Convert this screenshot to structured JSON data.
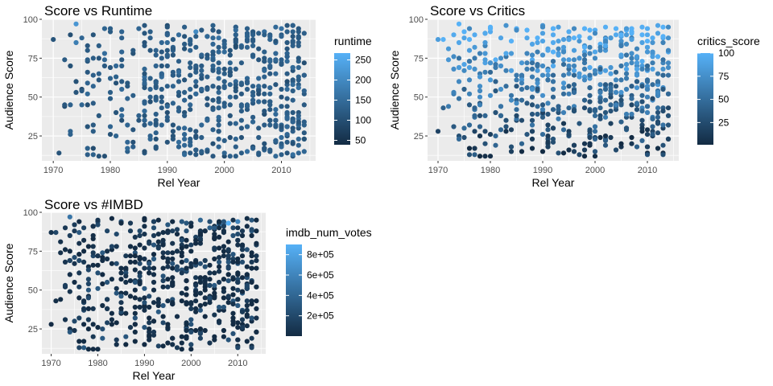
{
  "palette": {
    "low": "#132B43",
    "high": "#56B1F7",
    "panel": "#EBEBEB",
    "grid": "#FFFFFF"
  },
  "chart_data": [
    {
      "type": "scatter",
      "title": "Score vs Runtime",
      "xlabel": "Rel Year",
      "ylabel": "Audience Score",
      "xlim": [
        1968,
        2016
      ],
      "ylim": [
        9,
        100
      ],
      "xticks": [
        1970,
        1980,
        1990,
        2000,
        2010
      ],
      "yticks": [
        25,
        50,
        75,
        100
      ],
      "grid": true,
      "legend": {
        "title": "runtime",
        "position": "right",
        "range": [
          39,
          267
        ],
        "ticks": [
          {
            "value": 50,
            "label": "50"
          },
          {
            "value": 100,
            "label": "100"
          },
          {
            "value": 150,
            "label": "150"
          },
          {
            "value": 200,
            "label": "200"
          },
          {
            "value": 250,
            "label": "250"
          }
        ]
      },
      "seed": 11,
      "points": [
        [
          1970,
          87,
          110
        ],
        [
          1972,
          44,
          95
        ],
        [
          1972,
          74,
          120
        ],
        [
          1973,
          90,
          100
        ],
        [
          1974,
          97,
          220
        ],
        [
          1974,
          85,
          180
        ],
        [
          1974,
          60,
          105
        ],
        [
          1975,
          88,
          140
        ],
        [
          1975,
          55,
          95
        ],
        [
          1976,
          80,
          120
        ],
        [
          1976,
          45,
          100
        ],
        [
          1977,
          17,
          95
        ],
        [
          1977,
          90,
          110
        ],
        [
          1978,
          65,
          130
        ],
        [
          1978,
          38,
          115
        ],
        [
          1979,
          12,
          100
        ],
        [
          1979,
          78,
          150
        ],
        [
          1980,
          92,
          120
        ],
        [
          1980,
          26,
          105
        ],
        [
          1981,
          40,
          110
        ],
        [
          1982,
          88,
          130
        ],
        [
          1982,
          70,
          125
        ],
        [
          1983,
          57,
          115
        ],
        [
          1984,
          78,
          105
        ],
        [
          1985,
          94,
          140
        ],
        [
          1985,
          35,
          110
        ],
        [
          1986,
          63,
          160
        ],
        [
          1987,
          88,
          130
        ],
        [
          1988,
          50,
          120
        ],
        [
          1988,
          23,
          105
        ],
        [
          1989,
          85,
          140
        ],
        [
          1990,
          45,
          95
        ],
        [
          1990,
          70,
          120
        ],
        [
          1991,
          32,
          110
        ],
        [
          1992,
          90,
          150
        ],
        [
          1992,
          60,
          125
        ],
        [
          1993,
          40,
          105
        ],
        [
          1994,
          80,
          135
        ],
        [
          1995,
          92,
          200
        ],
        [
          1995,
          28,
          110
        ],
        [
          1996,
          55,
          120
        ],
        [
          1997,
          75,
          140
        ],
        [
          1998,
          20,
          100
        ],
        [
          1998,
          48,
          115
        ],
        [
          1999,
          88,
          160
        ],
        [
          2000,
          12,
          95
        ],
        [
          2000,
          65,
          125
        ],
        [
          2001,
          38,
          110
        ],
        [
          2002,
          85,
          140
        ],
        [
          2002,
          95,
          150
        ],
        [
          2003,
          24,
          105
        ],
        [
          2003,
          58,
          130
        ],
        [
          2004,
          90,
          180
        ],
        [
          2004,
          42,
          115
        ],
        [
          2005,
          18,
          100
        ],
        [
          2005,
          76,
          135
        ],
        [
          2006,
          62,
          145
        ],
        [
          2006,
          30,
          120
        ],
        [
          2007,
          92,
          150
        ],
        [
          2007,
          20,
          105
        ],
        [
          2008,
          70,
          130
        ],
        [
          2008,
          45,
          125
        ],
        [
          2009,
          85,
          140
        ],
        [
          2009,
          35,
          110
        ],
        [
          2010,
          94,
          160
        ],
        [
          2010,
          55,
          120
        ],
        [
          2011,
          25,
          105
        ],
        [
          2011,
          78,
          135
        ],
        [
          2012,
          60,
          125
        ],
        [
          2012,
          40,
          115
        ],
        [
          2013,
          88,
          140
        ],
        [
          2013,
          30,
          110
        ],
        [
          2014,
          52,
          120
        ],
        [
          2014,
          72,
          100
        ]
      ]
    },
    {
      "type": "scatter",
      "title": "Score vs Critics",
      "xlabel": "Rel Year",
      "ylabel": "Audience Score",
      "xlim": [
        1968,
        2016
      ],
      "ylim": [
        9,
        100
      ],
      "xticks": [
        1970,
        1980,
        1990,
        2000,
        2010
      ],
      "yticks": [
        25,
        50,
        75,
        100
      ],
      "grid": true,
      "legend": {
        "title": "critics_score",
        "position": "right",
        "range": [
          1,
          100
        ],
        "ticks": [
          {
            "value": 25,
            "label": "25"
          },
          {
            "value": 50,
            "label": "50"
          },
          {
            "value": 75,
            "label": "75"
          },
          {
            "value": 100,
            "label": "100"
          }
        ]
      },
      "seed": 11,
      "points": [
        [
          1970,
          87,
          85
        ],
        [
          1972,
          44,
          60
        ],
        [
          1972,
          74,
          80
        ],
        [
          1973,
          90,
          95
        ],
        [
          1974,
          97,
          100
        ],
        [
          1974,
          85,
          92
        ],
        [
          1974,
          60,
          70
        ],
        [
          1975,
          88,
          90
        ],
        [
          1975,
          55,
          40
        ],
        [
          1976,
          80,
          85
        ],
        [
          1976,
          45,
          35
        ],
        [
          1977,
          17,
          10
        ],
        [
          1977,
          90,
          95
        ],
        [
          1978,
          65,
          60
        ],
        [
          1978,
          38,
          25
        ],
        [
          1979,
          12,
          5
        ],
        [
          1979,
          78,
          80
        ],
        [
          1980,
          92,
          95
        ],
        [
          1980,
          26,
          15
        ],
        [
          1981,
          40,
          30
        ],
        [
          1982,
          88,
          90
        ],
        [
          1982,
          70,
          75
        ],
        [
          1983,
          57,
          50
        ],
        [
          1984,
          78,
          82
        ],
        [
          1985,
          94,
          98
        ],
        [
          1985,
          35,
          20
        ],
        [
          1986,
          63,
          65
        ],
        [
          1987,
          88,
          92
        ],
        [
          1988,
          50,
          45
        ],
        [
          1988,
          23,
          12
        ],
        [
          1989,
          85,
          90
        ],
        [
          1990,
          45,
          35
        ],
        [
          1990,
          70,
          72
        ],
        [
          1991,
          32,
          20
        ],
        [
          1992,
          90,
          95
        ],
        [
          1992,
          60,
          55
        ],
        [
          1993,
          40,
          30
        ],
        [
          1994,
          80,
          85
        ],
        [
          1995,
          92,
          96
        ],
        [
          1995,
          28,
          15
        ],
        [
          1996,
          55,
          50
        ],
        [
          1997,
          75,
          78
        ],
        [
          1998,
          20,
          8
        ],
        [
          1998,
          48,
          40
        ],
        [
          1999,
          88,
          90
        ],
        [
          2000,
          12,
          3
        ],
        [
          2000,
          65,
          62
        ],
        [
          2001,
          38,
          25
        ],
        [
          2002,
          85,
          88
        ],
        [
          2002,
          95,
          98
        ],
        [
          2003,
          24,
          12
        ],
        [
          2003,
          58,
          55
        ],
        [
          2004,
          90,
          94
        ],
        [
          2004,
          42,
          30
        ],
        [
          2005,
          18,
          8
        ],
        [
          2005,
          76,
          78
        ],
        [
          2006,
          62,
          60
        ],
        [
          2006,
          30,
          20
        ],
        [
          2007,
          92,
          96
        ],
        [
          2007,
          20,
          10
        ],
        [
          2008,
          70,
          72
        ],
        [
          2008,
          45,
          38
        ],
        [
          2009,
          85,
          88
        ],
        [
          2009,
          35,
          25
        ],
        [
          2010,
          94,
          97
        ],
        [
          2010,
          55,
          50
        ],
        [
          2011,
          25,
          15
        ],
        [
          2011,
          78,
          80
        ],
        [
          2012,
          60,
          55
        ],
        [
          2012,
          40,
          30
        ],
        [
          2013,
          88,
          92
        ],
        [
          2013,
          30,
          18
        ],
        [
          2014,
          52,
          45
        ],
        [
          2014,
          72,
          70
        ]
      ]
    },
    {
      "type": "scatter",
      "title": "Score vs #IMBD",
      "xlabel": "Rel Year",
      "ylabel": "Audience Score",
      "xlim": [
        1968,
        2016
      ],
      "ylim": [
        9,
        100
      ],
      "xticks": [
        1970,
        1980,
        1990,
        2000,
        2010
      ],
      "yticks": [
        25,
        50,
        75,
        100
      ],
      "grid": true,
      "legend": {
        "title": "imdb_num_votes",
        "position": "right",
        "range": [
          180,
          900000
        ],
        "ticks": [
          {
            "value": 200000,
            "label": "2e+05"
          },
          {
            "value": 400000,
            "label": "4e+05"
          },
          {
            "value": 600000,
            "label": "6e+05"
          },
          {
            "value": 800000,
            "label": "8e+05"
          }
        ]
      },
      "seed": 11,
      "points": [
        [
          1970,
          87,
          60000
        ],
        [
          1972,
          44,
          20000
        ],
        [
          1972,
          74,
          40000
        ],
        [
          1973,
          90,
          80000
        ],
        [
          1974,
          97,
          500000
        ],
        [
          1974,
          85,
          120000
        ],
        [
          1974,
          60,
          30000
        ],
        [
          1975,
          88,
          90000
        ],
        [
          1975,
          55,
          15000
        ],
        [
          1976,
          80,
          50000
        ],
        [
          1976,
          45,
          10000
        ],
        [
          1977,
          17,
          5000
        ],
        [
          1977,
          90,
          150000
        ],
        [
          1978,
          65,
          25000
        ],
        [
          1978,
          38,
          8000
        ],
        [
          1979,
          12,
          3000
        ],
        [
          1979,
          78,
          60000
        ],
        [
          1980,
          92,
          200000
        ],
        [
          1980,
          26,
          6000
        ],
        [
          1981,
          40,
          12000
        ],
        [
          1982,
          88,
          180000
        ],
        [
          1982,
          70,
          40000
        ],
        [
          1983,
          57,
          20000
        ],
        [
          1984,
          78,
          70000
        ],
        [
          1985,
          94,
          250000
        ],
        [
          1985,
          35,
          10000
        ],
        [
          1986,
          63,
          30000
        ],
        [
          1987,
          88,
          120000
        ],
        [
          1988,
          50,
          15000
        ],
        [
          1988,
          23,
          5000
        ],
        [
          1989,
          85,
          110000
        ],
        [
          1990,
          45,
          15000
        ],
        [
          1990,
          70,
          50000
        ],
        [
          1991,
          32,
          8000
        ],
        [
          1992,
          90,
          220000
        ],
        [
          1992,
          60,
          30000
        ],
        [
          1993,
          40,
          12000
        ],
        [
          1994,
          80,
          150000
        ],
        [
          1995,
          92,
          300000
        ],
        [
          1995,
          28,
          6000
        ],
        [
          1996,
          55,
          25000
        ],
        [
          1997,
          75,
          90000
        ],
        [
          1998,
          20,
          4000
        ],
        [
          1998,
          48,
          20000
        ],
        [
          1999,
          88,
          250000
        ],
        [
          2000,
          12,
          3000
        ],
        [
          2000,
          65,
          40000
        ],
        [
          2001,
          38,
          15000
        ],
        [
          2002,
          85,
          200000
        ],
        [
          2002,
          95,
          400000
        ],
        [
          2003,
          24,
          8000
        ],
        [
          2003,
          58,
          35000
        ],
        [
          2004,
          90,
          350000
        ],
        [
          2004,
          42,
          20000
        ],
        [
          2005,
          18,
          6000
        ],
        [
          2005,
          76,
          100000
        ],
        [
          2006,
          62,
          60000
        ],
        [
          2006,
          30,
          15000
        ],
        [
          2006,
          92,
          650000
        ],
        [
          2007,
          92,
          450000
        ],
        [
          2007,
          20,
          8000
        ],
        [
          2008,
          70,
          120000
        ],
        [
          2008,
          45,
          30000
        ],
        [
          2008,
          93,
          900000
        ],
        [
          2009,
          85,
          250000
        ],
        [
          2009,
          35,
          20000
        ],
        [
          2010,
          94,
          600000
        ],
        [
          2010,
          55,
          50000
        ],
        [
          2011,
          25,
          12000
        ],
        [
          2011,
          78,
          150000
        ],
        [
          2012,
          60,
          60000
        ],
        [
          2012,
          40,
          25000
        ],
        [
          2013,
          88,
          300000
        ],
        [
          2013,
          30,
          15000
        ],
        [
          2014,
          52,
          40000
        ],
        [
          2014,
          72,
          80000
        ]
      ]
    }
  ]
}
